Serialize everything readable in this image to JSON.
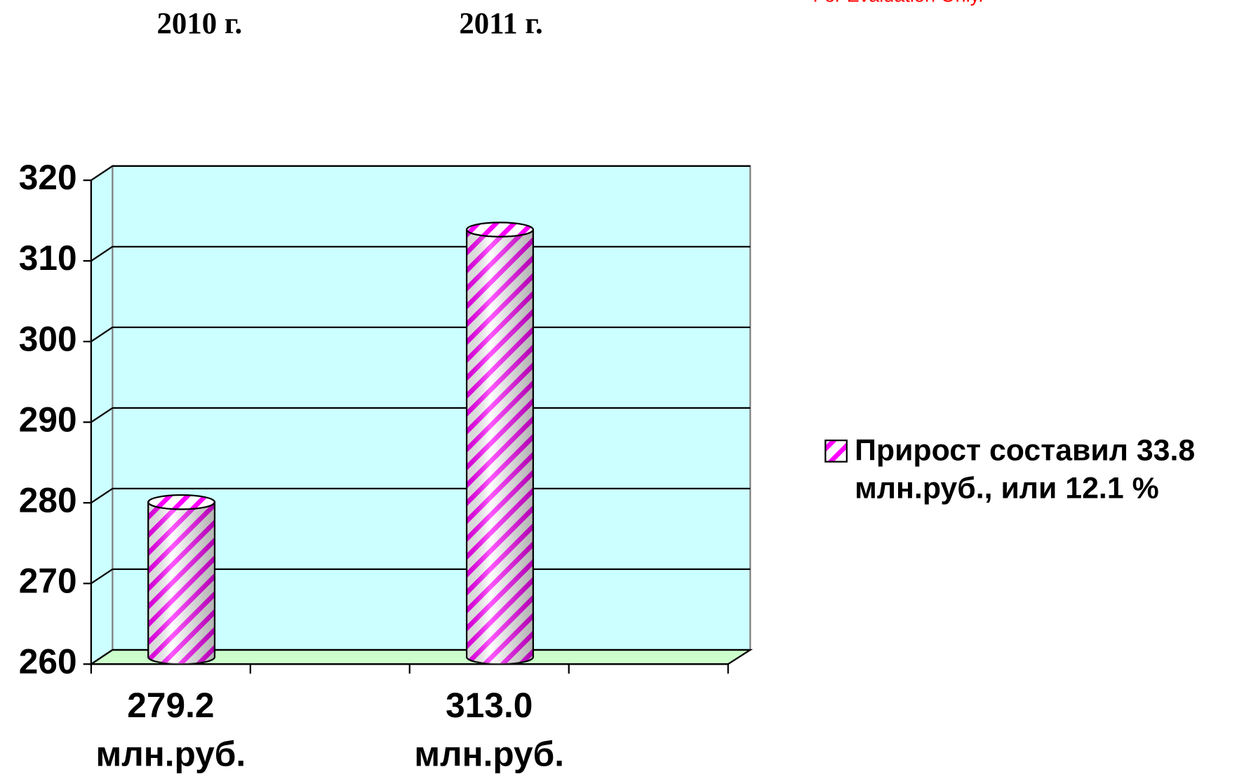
{
  "chart_data": {
    "type": "bar3d",
    "annotations": [
      "2010 г.",
      "2011 г.",
      "For Evaluation Only."
    ],
    "categories": [
      "279.2 млн.руб.",
      null,
      "313.0 млн.руб.",
      null
    ],
    "series": [
      {
        "name": "Прирост составил 33.8 млн.руб., или 12.1 %",
        "color": "#ff00ff",
        "values": [
          279.2,
          null,
          313.0,
          null
        ]
      }
    ],
    "ylim": [
      260,
      320
    ],
    "yticks": [
      260,
      270,
      280,
      290,
      300,
      310,
      320
    ],
    "grid": true,
    "legend": "right",
    "wall_color": "#ccffff",
    "floor_color": "#ccffcc"
  }
}
